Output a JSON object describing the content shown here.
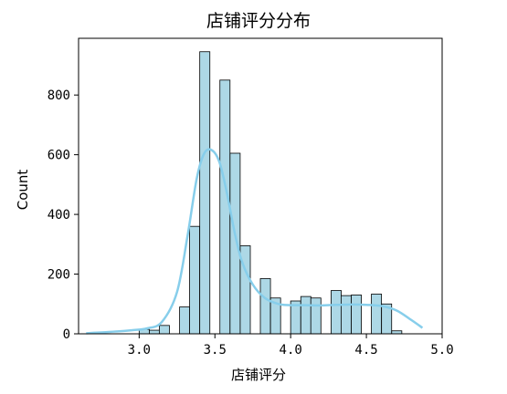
{
  "chart_data": {
    "type": "bar",
    "title": "店铺评分分布",
    "xlabel": "店铺评分",
    "ylabel": "Count",
    "xlim": [
      2.6,
      5.0
    ],
    "ylim": [
      0,
      990
    ],
    "x_ticks": [
      3.0,
      3.5,
      4.0,
      4.5,
      5.0
    ],
    "x_tick_labels": [
      "3.0",
      "3.5",
      "4.0",
      "4.5",
      "5.0"
    ],
    "y_ticks": [
      0,
      200,
      400,
      600,
      800
    ],
    "y_tick_labels": [
      "0",
      "200",
      "400",
      "600",
      "800"
    ],
    "bin_width": 0.0667,
    "bar_color": "#add8e6",
    "kde_color": "#87ceeb",
    "grid": false,
    "series": [
      {
        "values": [
          {
            "x0": 3.0,
            "y": 15
          },
          {
            "x0": 3.067,
            "y": 12
          },
          {
            "x0": 3.133,
            "y": 28
          },
          {
            "x0": 3.2,
            "y": 0
          },
          {
            "x0": 3.267,
            "y": 90
          },
          {
            "x0": 3.333,
            "y": 360
          },
          {
            "x0": 3.4,
            "y": 945
          },
          {
            "x0": 3.467,
            "y": 0
          },
          {
            "x0": 3.533,
            "y": 850
          },
          {
            "x0": 3.6,
            "y": 605
          },
          {
            "x0": 3.667,
            "y": 295
          },
          {
            "x0": 3.733,
            "y": 0
          },
          {
            "x0": 3.8,
            "y": 185
          },
          {
            "x0": 3.867,
            "y": 120
          },
          {
            "x0": 3.933,
            "y": 0
          },
          {
            "x0": 4.0,
            "y": 110
          },
          {
            "x0": 4.067,
            "y": 125
          },
          {
            "x0": 4.133,
            "y": 120
          },
          {
            "x0": 4.2,
            "y": 0
          },
          {
            "x0": 4.267,
            "y": 145
          },
          {
            "x0": 4.333,
            "y": 128
          },
          {
            "x0": 4.4,
            "y": 130
          },
          {
            "x0": 4.467,
            "y": 0
          },
          {
            "x0": 4.533,
            "y": 133
          },
          {
            "x0": 4.6,
            "y": 100
          },
          {
            "x0": 4.667,
            "y": 10
          }
        ]
      },
      {
        "type": "line",
        "points": [
          [
            2.65,
            2
          ],
          [
            2.8,
            6
          ],
          [
            2.95,
            12
          ],
          [
            3.05,
            18
          ],
          [
            3.15,
            40
          ],
          [
            3.25,
            140
          ],
          [
            3.32,
            330
          ],
          [
            3.38,
            520
          ],
          [
            3.43,
            605
          ],
          [
            3.48,
            615
          ],
          [
            3.53,
            575
          ],
          [
            3.58,
            470
          ],
          [
            3.63,
            340
          ],
          [
            3.68,
            240
          ],
          [
            3.75,
            165
          ],
          [
            3.83,
            120
          ],
          [
            3.92,
            100
          ],
          [
            4.0,
            96
          ],
          [
            4.1,
            96
          ],
          [
            4.2,
            95
          ],
          [
            4.3,
            97
          ],
          [
            4.4,
            98
          ],
          [
            4.5,
            97
          ],
          [
            4.6,
            93
          ],
          [
            4.7,
            78
          ],
          [
            4.8,
            45
          ],
          [
            4.87,
            20
          ]
        ]
      }
    ]
  }
}
